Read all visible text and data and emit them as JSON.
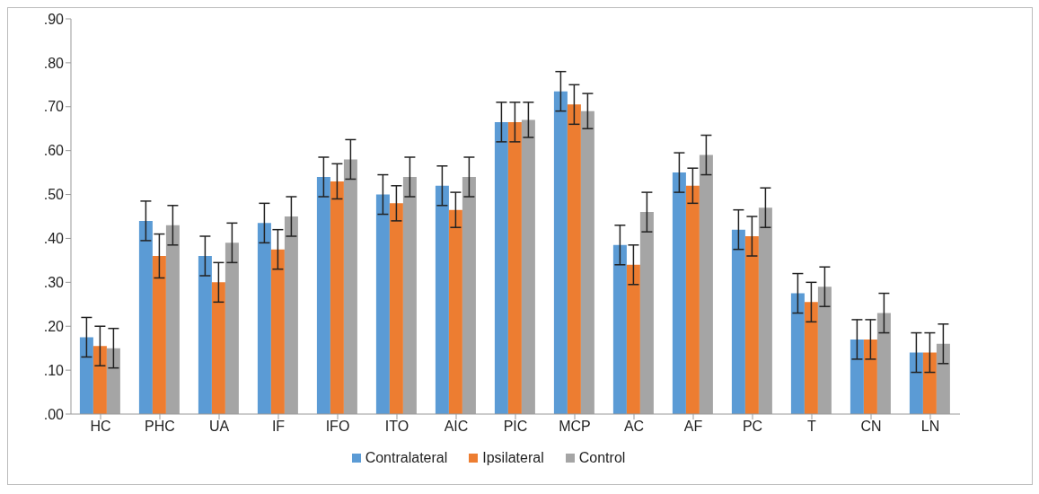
{
  "chart_data": {
    "type": "bar",
    "categories": [
      "HC",
      "PHC",
      "UA",
      "IF",
      "IFO",
      "ITO",
      "AIC",
      "PIC",
      "MCP",
      "AC",
      "AF",
      "PC",
      "T",
      "CN",
      "LN"
    ],
    "series": [
      {
        "name": "Contralateral",
        "color": "#5b9bd5",
        "values": [
          0.175,
          0.44,
          0.36,
          0.435,
          0.54,
          0.5,
          0.52,
          0.665,
          0.735,
          0.385,
          0.55,
          0.42,
          0.275,
          0.17,
          0.14
        ],
        "errors": [
          0.045,
          0.045,
          0.045,
          0.045,
          0.045,
          0.045,
          0.045,
          0.045,
          0.045,
          0.045,
          0.045,
          0.045,
          0.045,
          0.045,
          0.045
        ]
      },
      {
        "name": "Ipsilateral",
        "color": "#ed7d31",
        "values": [
          0.155,
          0.36,
          0.3,
          0.375,
          0.53,
          0.48,
          0.465,
          0.665,
          0.705,
          0.34,
          0.52,
          0.405,
          0.255,
          0.17,
          0.14
        ],
        "errors": [
          0.045,
          0.05,
          0.045,
          0.045,
          0.04,
          0.04,
          0.04,
          0.045,
          0.045,
          0.045,
          0.04,
          0.045,
          0.045,
          0.045,
          0.045
        ]
      },
      {
        "name": "Control",
        "color": "#a5a5a5",
        "values": [
          0.15,
          0.43,
          0.39,
          0.45,
          0.58,
          0.54,
          0.54,
          0.67,
          0.69,
          0.46,
          0.59,
          0.47,
          0.29,
          0.23,
          0.16
        ],
        "errors": [
          0.045,
          0.045,
          0.045,
          0.045,
          0.045,
          0.045,
          0.045,
          0.04,
          0.04,
          0.045,
          0.045,
          0.045,
          0.045,
          0.045,
          0.045
        ]
      }
    ],
    "ylim": [
      0,
      0.9
    ],
    "yticks": [
      {
        "value": 0,
        "label": ".00"
      },
      {
        "value": 0.1,
        "label": ".10"
      },
      {
        "value": 0.2,
        "label": ".20"
      },
      {
        "value": 0.3,
        "label": ".30"
      },
      {
        "value": 0.4,
        "label": ".40"
      },
      {
        "value": 0.5,
        "label": ".50"
      },
      {
        "value": 0.6,
        "label": ".60"
      },
      {
        "value": 0.7,
        "label": ".70"
      },
      {
        "value": 0.8,
        "label": ".80"
      },
      {
        "value": 0.9,
        "label": ".90"
      }
    ],
    "grid": false,
    "legend": "bottom"
  }
}
